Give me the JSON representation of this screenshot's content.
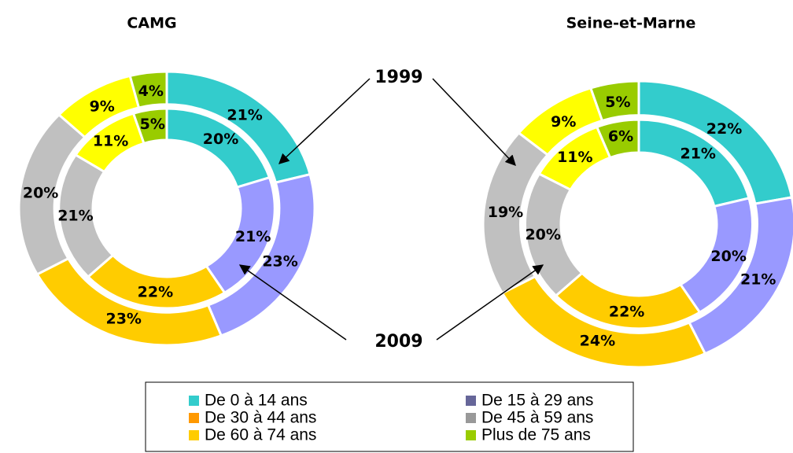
{
  "chart_data": [
    {
      "type": "donut",
      "title": "CAMG",
      "series": [
        {
          "name": "1999",
          "values": [
            21,
            23,
            23,
            20,
            9,
            4
          ],
          "value_labels": [
            "21%",
            "23%",
            "23%",
            "20%",
            "9%",
            "4%"
          ]
        },
        {
          "name": "2009",
          "values": [
            20,
            21,
            22,
            21,
            11,
            5
          ],
          "value_labels": [
            "20%",
            "21%",
            "22%",
            "21%",
            "11%",
            "5%"
          ]
        }
      ],
      "colors": [
        "#33cccc",
        "#9999ff",
        "#ffcc00",
        "#c0c0c0",
        "#ffff00",
        "#99cc00"
      ]
    },
    {
      "type": "donut",
      "title": "Seine-et-Marne",
      "series": [
        {
          "name": "1999",
          "values": [
            22,
            21,
            24,
            19,
            9,
            5
          ],
          "value_labels": [
            "22%",
            "21%",
            "24%",
            "19%",
            "9%",
            "5%"
          ]
        },
        {
          "name": "2009",
          "values": [
            21,
            20,
            22,
            20,
            11,
            6
          ],
          "value_labels": [
            "21%",
            "20%",
            "22%",
            "20%",
            "11%",
            "6%"
          ]
        }
      ],
      "colors": [
        "#33cccc",
        "#9999ff",
        "#ffcc00",
        "#c0c0c0",
        "#ffff00",
        "#99cc00"
      ]
    }
  ],
  "legend": {
    "entries": [
      "De 0 à 14 ans",
      "De 15 à 29 ans",
      "De 30 à 44 ans",
      "De 45 à 59 ans",
      "De 60 à 74 ans",
      "Plus de 75 ans"
    ],
    "colors": [
      "#33cccc",
      "#666699",
      "#ff9900",
      "#999999",
      "#ffcc00",
      "#99cc00"
    ]
  }
}
